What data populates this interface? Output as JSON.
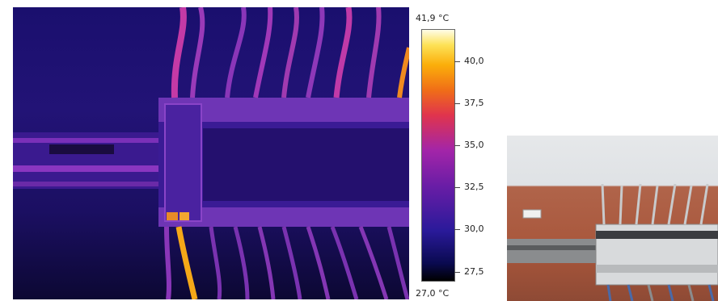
{
  "scale": {
    "max_label": "41,9 °C",
    "min_label": "27,0 °C",
    "ticks": [
      {
        "label": "40,0",
        "value": 40.0
      },
      {
        "label": "37,5",
        "value": 37.5
      },
      {
        "label": "35,0",
        "value": 35.0
      },
      {
        "label": "32,5",
        "value": 32.5
      },
      {
        "label": "30,0",
        "value": 30.0
      },
      {
        "label": "27,5",
        "value": 27.5
      }
    ],
    "range": [
      27.0,
      41.9
    ]
  }
}
